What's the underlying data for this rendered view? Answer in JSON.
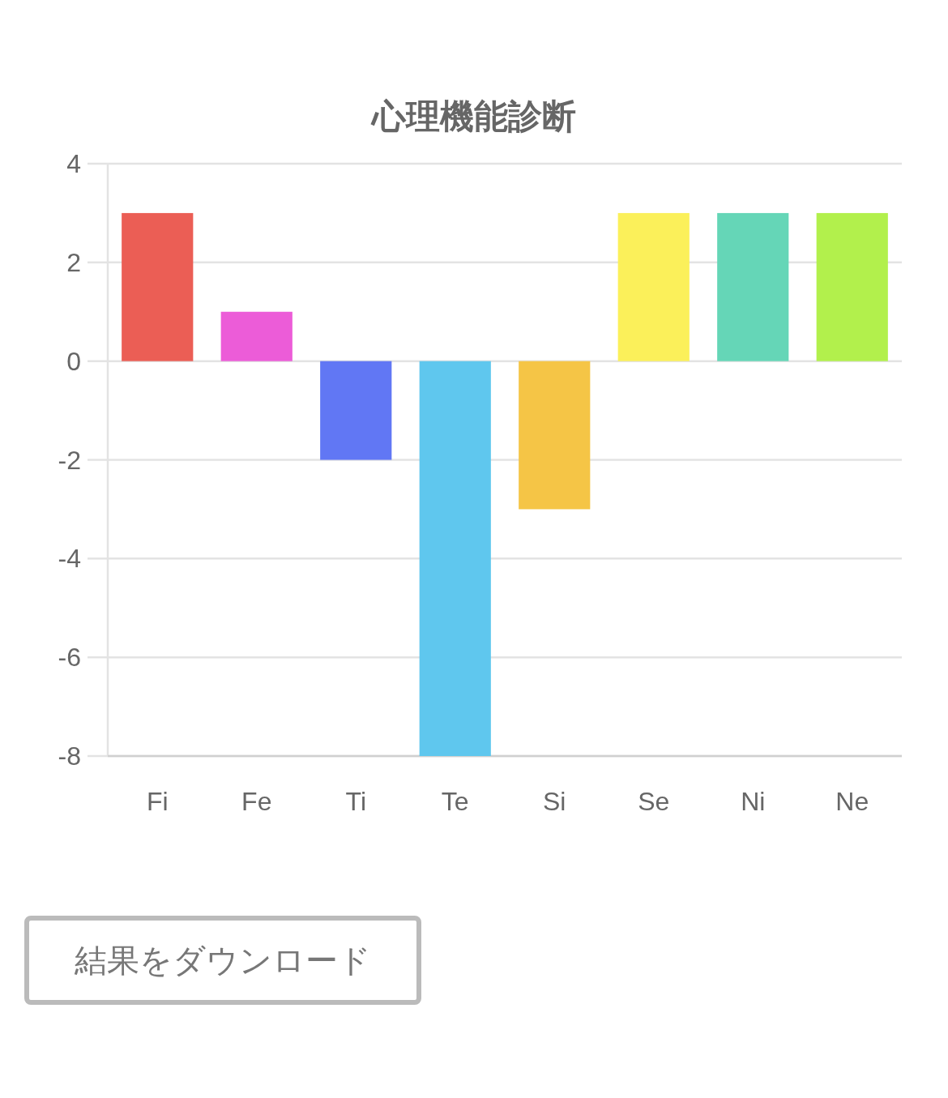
{
  "chart_data": {
    "type": "bar",
    "title": "心理機能診断",
    "categories": [
      "Fi",
      "Fe",
      "Ti",
      "Te",
      "Si",
      "Se",
      "Ni",
      "Ne"
    ],
    "values": [
      3,
      1,
      -2,
      -8,
      -3,
      3,
      3,
      3
    ],
    "colors": [
      "#eb5e55",
      "#ec5cd8",
      "#6177f4",
      "#5fc7ee",
      "#f5c546",
      "#fbf05a",
      "#65d6b7",
      "#b2f04c"
    ],
    "ylim": [
      -8,
      4
    ],
    "yticks": [
      -8,
      -6,
      -4,
      -2,
      0,
      2,
      4
    ],
    "grid": "y",
    "annotations": [
      "結果をダウンロード"
    ]
  }
}
